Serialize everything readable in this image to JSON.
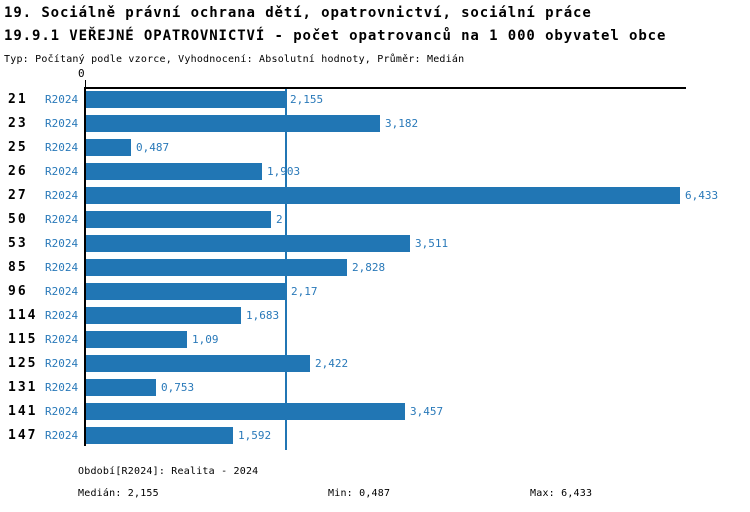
{
  "header": {
    "line1": "19. Sociálně právní ochrana dětí, opatrovnictví, sociální práce",
    "line2": "19.9.1 VEŘEJNÉ OPATROVNICTVÍ - počet opatrovanců na 1 000 obyvatel obce",
    "line3": "Typ: Počítaný podle vzorce, Vyhodnocení: Absolutní hodnoty, Průměr: Medián"
  },
  "chart_data": {
    "type": "bar",
    "orientation": "horizontal",
    "series_label": "R2024",
    "categories": [
      "21",
      "23",
      "25",
      "26",
      "27",
      "50",
      "53",
      "85",
      "96",
      "114",
      "115",
      "125",
      "131",
      "141",
      "147"
    ],
    "values": [
      2.155,
      3.182,
      0.487,
      1.903,
      6.433,
      2,
      3.511,
      2.828,
      2.17,
      1.683,
      1.09,
      2.422,
      0.753,
      3.457,
      1.592
    ],
    "value_labels": [
      "2,155",
      "3,182",
      "0,487",
      "1,903",
      "6,433",
      "2",
      "3,511",
      "2,828",
      "2,17",
      "1,683",
      "1,09",
      "2,422",
      "0,753",
      "3,457",
      "1,592"
    ],
    "x_axis": {
      "zero_label": "0",
      "xlim": [
        0,
        6.5
      ],
      "grid": false
    },
    "median_value": 2.155,
    "bar_color": "#2176b4",
    "median_line_color": "#2176b4",
    "label_color": "#2979b9",
    "category_color": "#000000"
  },
  "footer": {
    "period": "Období[R2024]: Realita - 2024",
    "median": "Medián: 2,155",
    "min": "Min: 0,487",
    "max": "Max: 6,433"
  }
}
